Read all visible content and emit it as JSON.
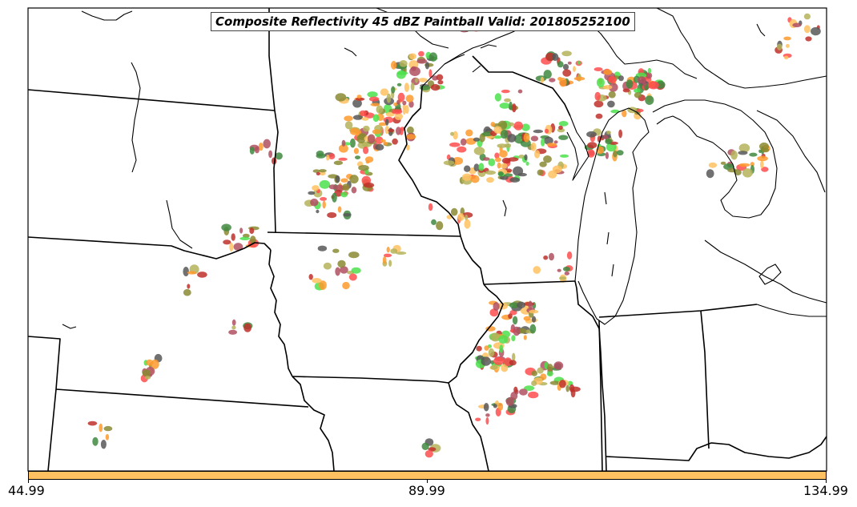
{
  "title": "Composite Reflectivity 45 dBZ Paintball Valid: 201805252100",
  "colorbar": {
    "color": "#ffc062",
    "ticks": [
      "44.99",
      "89.99",
      "134.99"
    ]
  },
  "colors": {
    "red": "#ff4d4d",
    "dark_red": "#c0302a",
    "orange": "#ff9a2e",
    "light_orange": "#ffc262",
    "olive": "#b5b35a",
    "dark_olive": "#8a8a32",
    "green": "#4ce04c",
    "dark_green": "#3f8a3f",
    "gray": "#585858",
    "mauve": "#b05060"
  }
}
